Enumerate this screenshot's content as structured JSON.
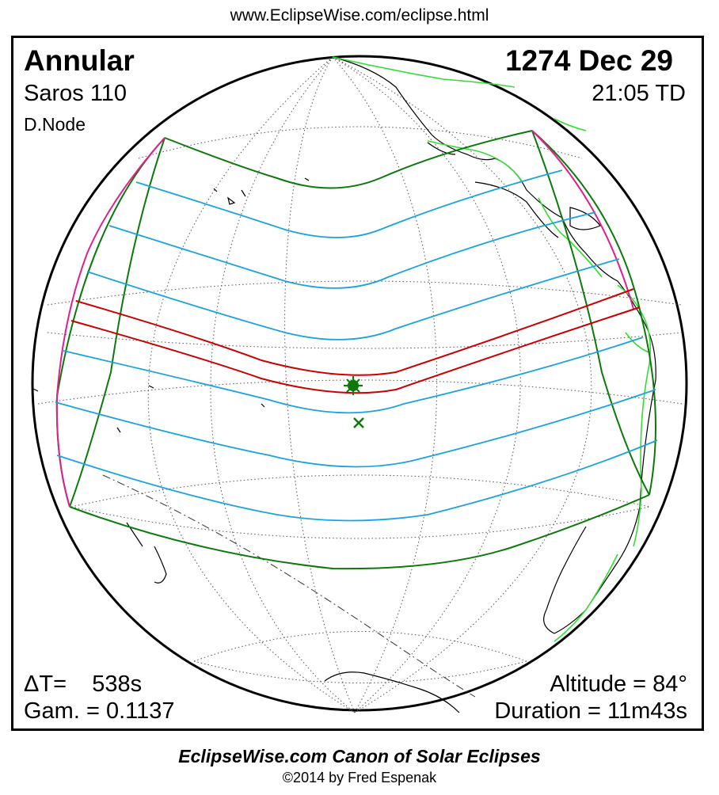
{
  "header": {
    "url": "www.EclipseWise.com/eclipse.html"
  },
  "eclipse": {
    "type": "Annular",
    "date": "1274 Dec 29",
    "saros": "Saros 110",
    "time": "21:05 TD",
    "node": "D.Node",
    "delta_t": "ΔT=    538s",
    "gamma": "Gam. = 0.1137",
    "altitude": "Altitude = 84°",
    "duration": "Duration = 11m43s"
  },
  "footer": {
    "title": "EclipseWise.com Canon of Solar Eclipses",
    "copyright": "©2014 by Fred Espenak"
  },
  "colors": {
    "central_path": "#cc0000",
    "penumbral_limits": "#0b7a0b",
    "penumbral_isolines": "#1aa3e0",
    "rise_set_curves": "#e0208c",
    "coastlines": "#000000",
    "political_borders": "#33dd33",
    "greatest_eclipse_marker": "#0b7a0b"
  },
  "markers": {
    "greatest_eclipse": "star-marker",
    "subsolar_point": "cross-marker"
  }
}
